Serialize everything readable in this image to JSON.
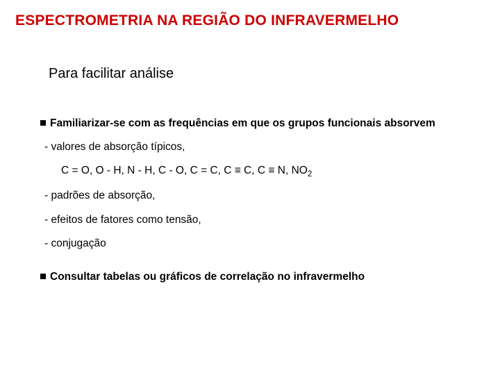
{
  "colors": {
    "title_color": "#cc0000",
    "text_color": "#000000",
    "background": "#ffffff",
    "bullet_color": "#000000"
  },
  "typography": {
    "title_fontsize": 21,
    "title_weight": "bold",
    "subtitle_fontsize": 20,
    "body_fontsize": 15.5,
    "font_family": "Arial"
  },
  "title": "ESPECTROMETRIA NA REGIÃO DO INFRAVERMELHO",
  "subtitle": "Para facilitar análise",
  "main_bullet_1": "Familiarizar-se com as frequências em que os grupos funcionais absorvem",
  "sub_1": "- valores de absorção típicos,",
  "chem_line_prefix": "C = O, O - H, N - H, C - O, C = C, C ",
  "chem_equiv": "≡",
  "chem_mid1": " C, C ",
  "chem_mid2": " N, NO",
  "chem_sub": "2",
  "sub_2": "- padrões de absorção,",
  "sub_3": "- efeitos de fatores como tensão,",
  "sub_4": "- conjugação",
  "main_bullet_2": "Consultar tabelas ou gráficos de correlação no infravermelho"
}
